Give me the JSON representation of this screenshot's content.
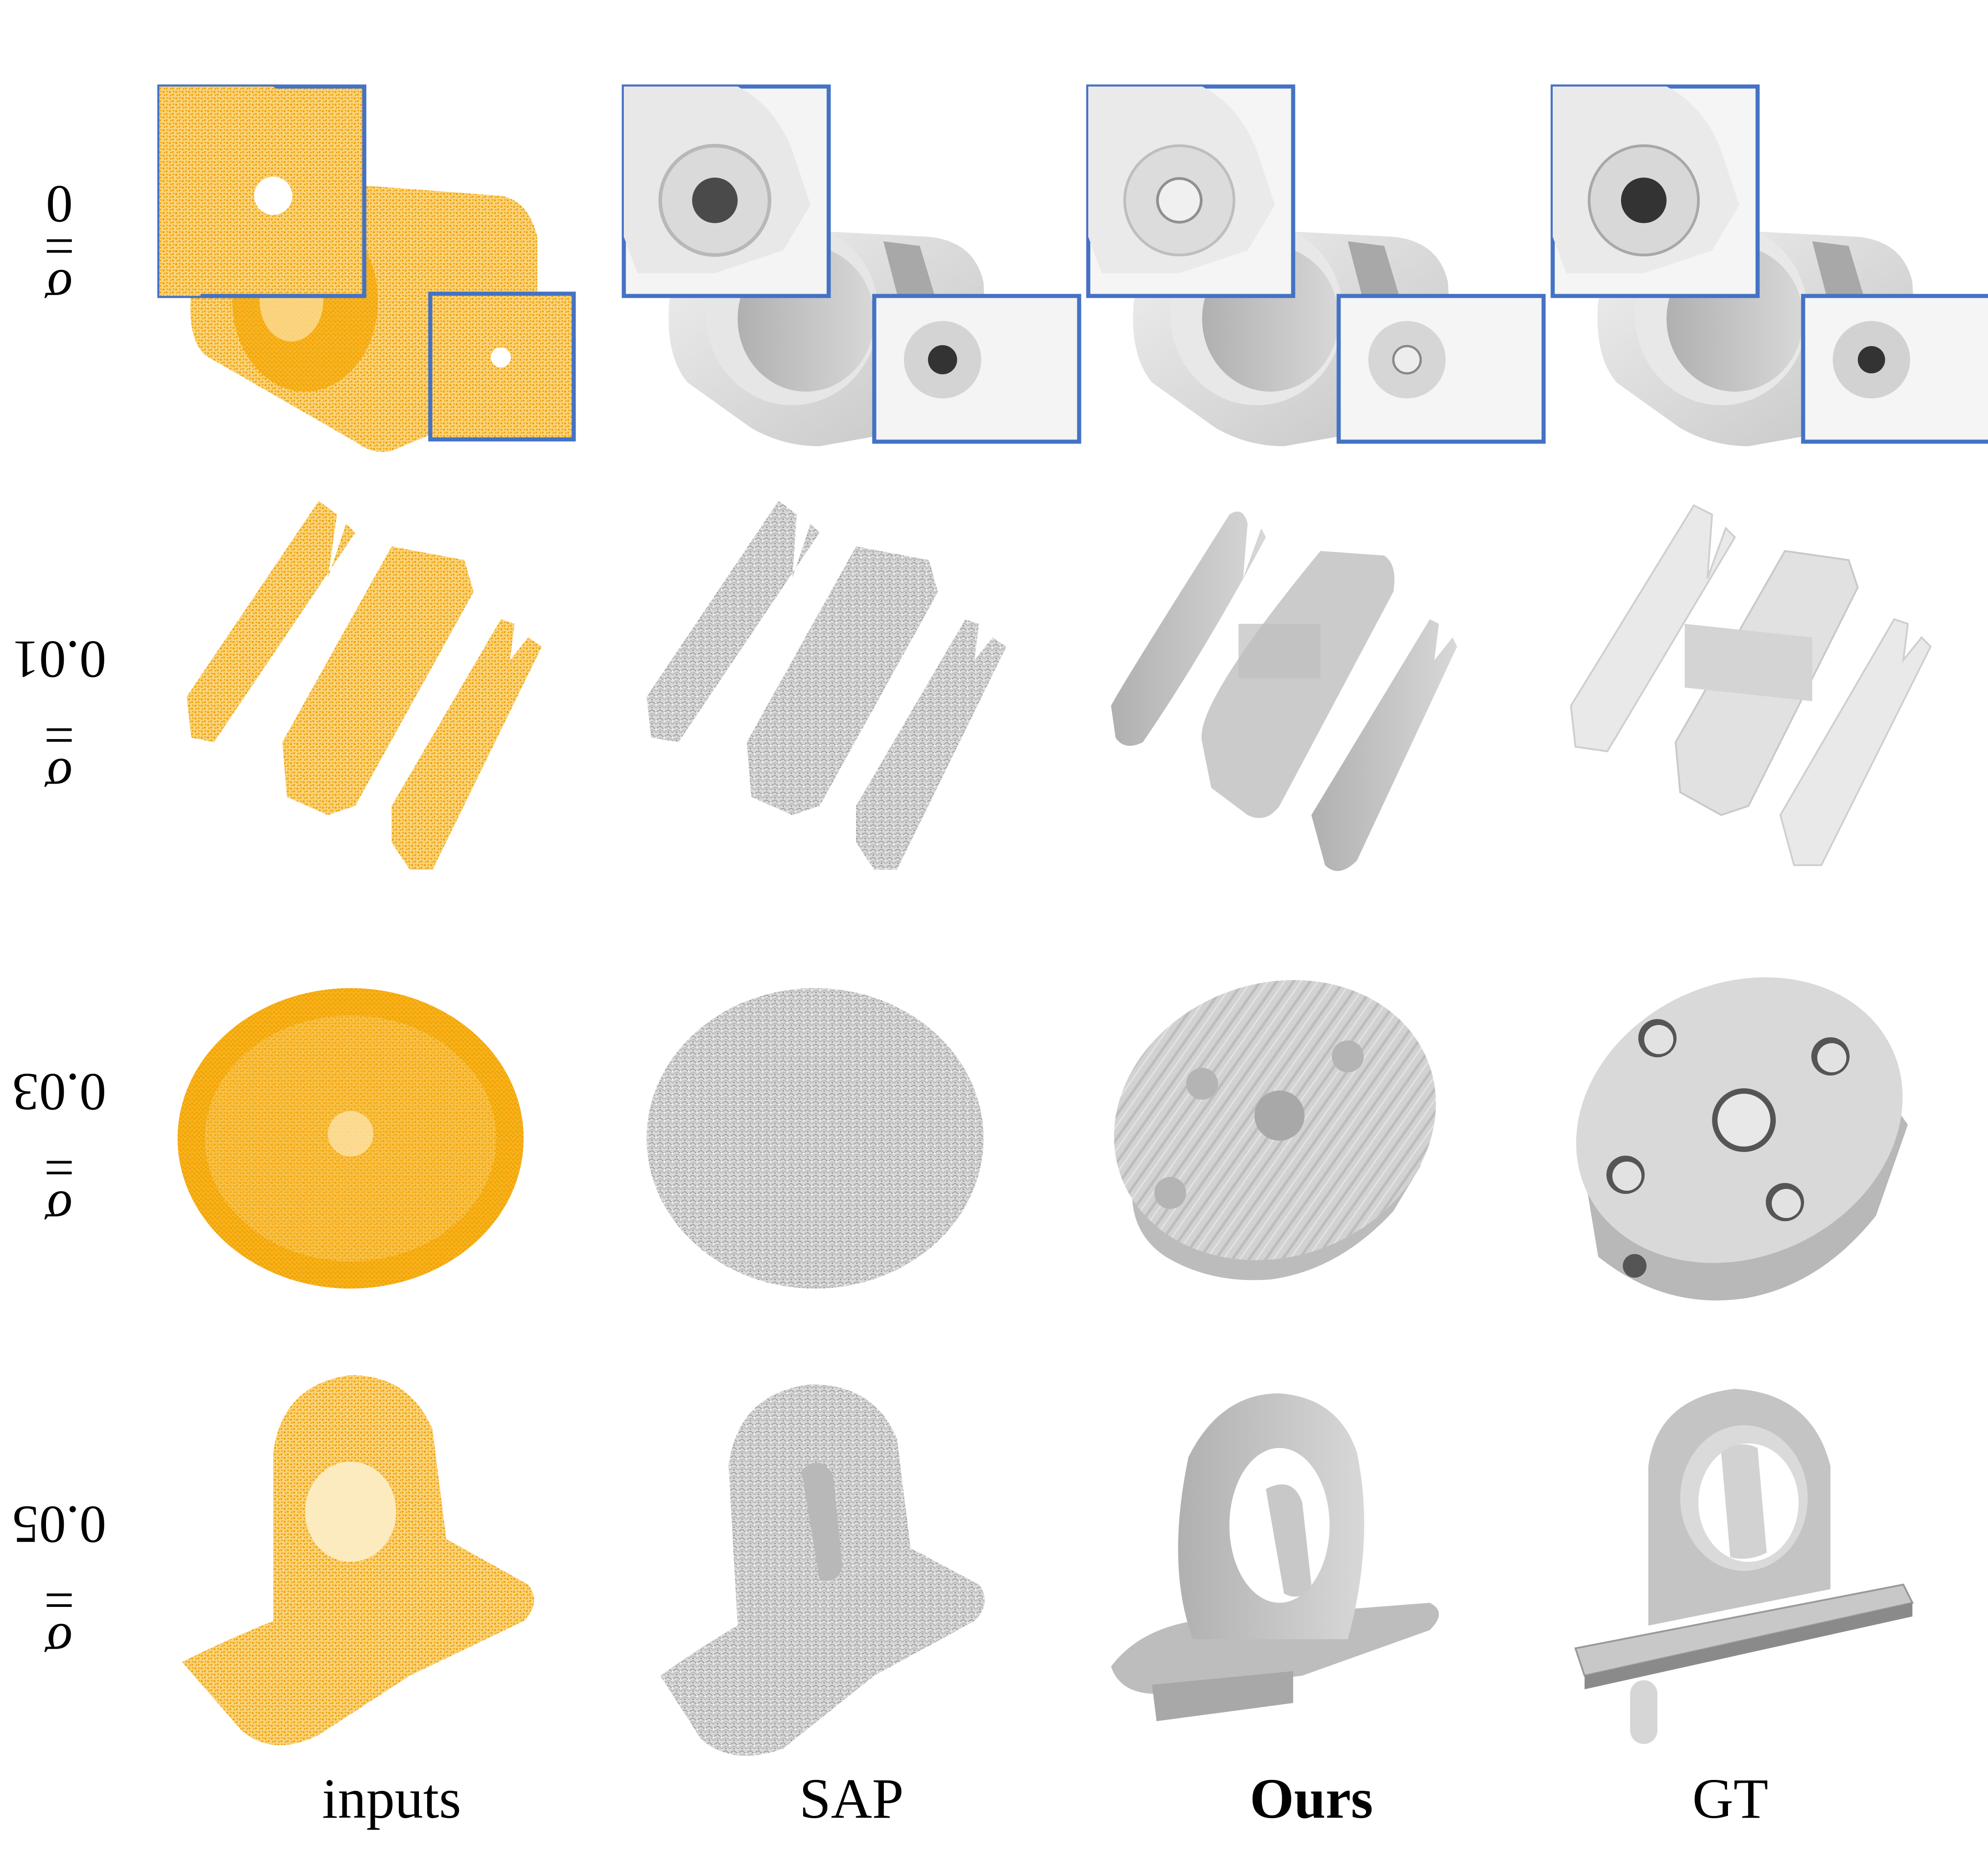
{
  "figure": {
    "rows": [
      {
        "symbol": "σ",
        "equals": "=",
        "value": "0"
      },
      {
        "symbol": "σ",
        "equals": "=",
        "value": "0.01"
      },
      {
        "symbol": "σ",
        "equals": "=",
        "value": "0.03"
      },
      {
        "symbol": "σ",
        "equals": "=",
        "value": "0.05"
      }
    ],
    "columns": [
      {
        "label": "inputs"
      },
      {
        "label": "SAP"
      },
      {
        "label": "Ours",
        "emphasis": "bold"
      },
      {
        "label": "GT"
      }
    ],
    "colors": {
      "point_cloud": "#F7A800",
      "mesh": "#DCDCDC",
      "mesh_shadow": "#9A9A9A",
      "zoom_box": "#4472C4"
    }
  }
}
